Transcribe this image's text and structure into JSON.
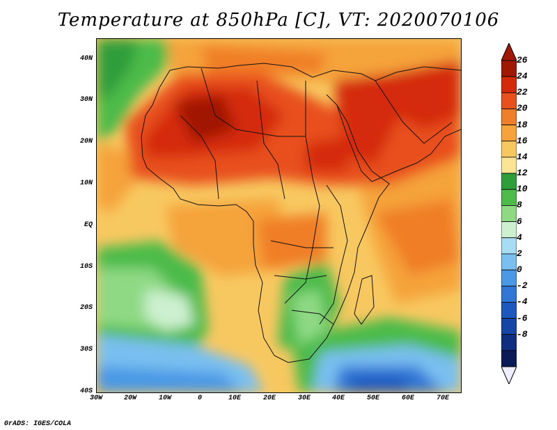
{
  "title": "Temperature at 850hPa [C], VT: 2020070106",
  "credit": "GrADS: IGES/COLA",
  "axes": {
    "lat_labels": [
      "40N",
      "30N",
      "20N",
      "10N",
      "EQ",
      "10S",
      "20S",
      "30S",
      "40S"
    ],
    "lon_labels": [
      "30W",
      "20W",
      "10W",
      "0",
      "10E",
      "20E",
      "30E",
      "40E",
      "50E",
      "60E",
      "70E"
    ]
  },
  "colorbar": {
    "labels": [
      "26",
      "24",
      "22",
      "20",
      "18",
      "16",
      "14",
      "12",
      "10",
      "8",
      "6",
      "4",
      "2",
      "0",
      "-2",
      "-4",
      "-6",
      "-8"
    ],
    "colors": [
      "#a01800",
      "#d42a0a",
      "#e8501c",
      "#f07e28",
      "#f5a33a",
      "#f8c860",
      "#fbe594",
      "#2e9e3a",
      "#4cbb4a",
      "#8fd985",
      "#cdf0d0",
      "#a8dcf5",
      "#79bff0",
      "#4a98e6",
      "#2f76d6",
      "#1d58c0",
      "#1546a6",
      "#102e80",
      "#0a1a56"
    ]
  }
}
